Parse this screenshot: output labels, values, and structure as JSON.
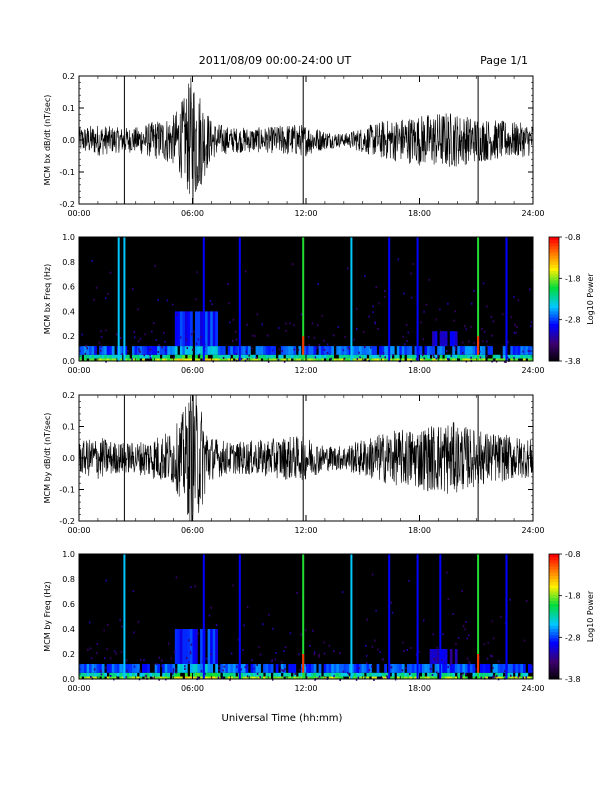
{
  "header": {
    "title": "2011/08/09  00:00-24:00 UT",
    "page": "Page 1/1"
  },
  "xlabel": "Universal Time (hh:mm)",
  "chart_data": [
    {
      "type": "line",
      "ylabel": "MCM bx dB/dt (nT/sec)",
      "x_ticks": [
        "00:00",
        "06:00",
        "12:00",
        "18:00",
        "24:00"
      ],
      "xlim": [
        0,
        24
      ],
      "ylim": [
        -0.2,
        0.2
      ],
      "y_ticks": [
        "0.2",
        "0.1",
        "0.0",
        "-0.1",
        "-0.2"
      ],
      "spike_times": [
        2.4,
        11.85,
        21.1
      ],
      "amplitude_envelope": [
        [
          0.0,
          0.04
        ],
        [
          1.0,
          0.05
        ],
        [
          2.0,
          0.04
        ],
        [
          3.0,
          0.04
        ],
        [
          4.0,
          0.06
        ],
        [
          5.0,
          0.08
        ],
        [
          5.6,
          0.14
        ],
        [
          6.0,
          0.22
        ],
        [
          6.5,
          0.14
        ],
        [
          7.0,
          0.06
        ],
        [
          8.0,
          0.04
        ],
        [
          10.0,
          0.04
        ],
        [
          11.0,
          0.05
        ],
        [
          12.0,
          0.05
        ],
        [
          13.0,
          0.03
        ],
        [
          14.0,
          0.02
        ],
        [
          15.0,
          0.04
        ],
        [
          16.0,
          0.06
        ],
        [
          18.0,
          0.08
        ],
        [
          19.5,
          0.09
        ],
        [
          21.0,
          0.07
        ],
        [
          24.0,
          0.05
        ]
      ]
    },
    {
      "type": "heatmap",
      "ylabel": "MCM bx Freq (Hz)",
      "x_ticks": [
        "00:00",
        "06:00",
        "12:00",
        "18:00",
        "24:00"
      ],
      "xlim": [
        0,
        24
      ],
      "ylim": [
        0.0,
        1.0
      ],
      "y_ticks": [
        "1.0",
        "0.8",
        "0.6",
        "0.4",
        "0.2",
        "0.0"
      ],
      "colorbar": {
        "label": "Log10 Power",
        "ticks": [
          "-0.8",
          "-1.8",
          "-2.8",
          "-3.8"
        ],
        "range": [
          -3.8,
          -0.8
        ]
      },
      "vertical_lines": [
        2.1,
        2.4,
        6.6,
        8.5,
        11.85,
        14.4,
        16.4,
        17.9,
        21.1,
        22.6
      ]
    },
    {
      "type": "line",
      "ylabel": "MCM by dB/dt (nT/sec)",
      "x_ticks": [
        "00:00",
        "06:00",
        "12:00",
        "18:00",
        "24:00"
      ],
      "xlim": [
        0,
        24
      ],
      "ylim": [
        -0.2,
        0.2
      ],
      "y_ticks": [
        "0.2",
        "0.1",
        "0.0",
        "-0.1",
        "-0.2"
      ],
      "spike_times": [
        2.4,
        11.85,
        21.1
      ],
      "amplitude_envelope": [
        [
          0.0,
          0.05
        ],
        [
          1.0,
          0.07
        ],
        [
          2.0,
          0.05
        ],
        [
          3.0,
          0.05
        ],
        [
          4.0,
          0.07
        ],
        [
          5.0,
          0.09
        ],
        [
          5.6,
          0.16
        ],
        [
          6.0,
          0.24
        ],
        [
          6.5,
          0.16
        ],
        [
          7.0,
          0.07
        ],
        [
          8.0,
          0.05
        ],
        [
          10.0,
          0.06
        ],
        [
          11.0,
          0.07
        ],
        [
          12.0,
          0.07
        ],
        [
          13.0,
          0.04
        ],
        [
          14.0,
          0.04
        ],
        [
          15.0,
          0.06
        ],
        [
          16.0,
          0.08
        ],
        [
          18.0,
          0.1
        ],
        [
          19.5,
          0.12
        ],
        [
          21.0,
          0.09
        ],
        [
          24.0,
          0.06
        ]
      ]
    },
    {
      "type": "heatmap",
      "ylabel": "MCM by Freq (Hz)",
      "x_ticks": [
        "00:00",
        "06:00",
        "12:00",
        "18:00",
        "24:00"
      ],
      "xlim": [
        0,
        24
      ],
      "ylim": [
        0.0,
        1.0
      ],
      "y_ticks": [
        "1.0",
        "0.8",
        "0.6",
        "0.4",
        "0.2",
        "0.0"
      ],
      "colorbar": {
        "label": "Log10 Power",
        "ticks": [
          "-0.8",
          "-1.8",
          "-2.8",
          "-3.8"
        ],
        "range": [
          -3.8,
          -0.8
        ]
      },
      "vertical_lines": [
        2.4,
        6.6,
        8.5,
        11.85,
        14.4,
        16.4,
        17.9,
        19.1,
        21.1,
        22.6
      ]
    }
  ]
}
